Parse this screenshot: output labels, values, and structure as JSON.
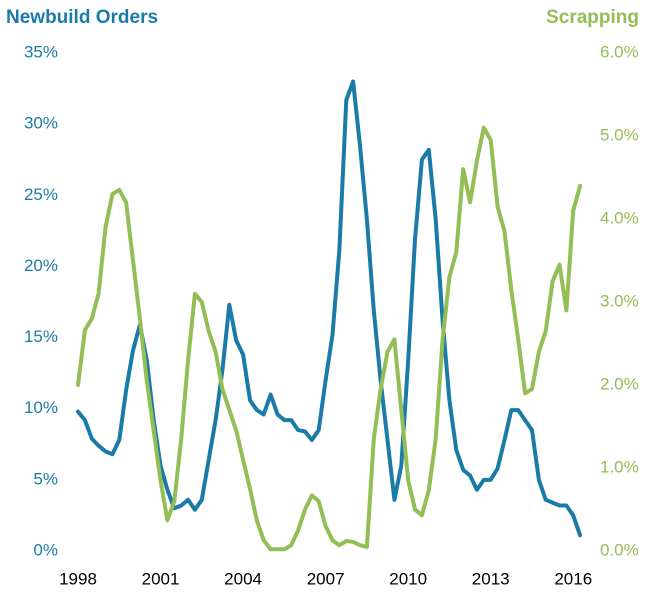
{
  "chart_data": {
    "type": "line",
    "series": [
      {
        "name": "Newbuild Orders",
        "color": "#1b7ba8",
        "axis": "y",
        "values": [
          9.8,
          9.2,
          7.9,
          7.4,
          7.0,
          6.8,
          7.8,
          11.3,
          14.1,
          15.9,
          13.4,
          9.2,
          6.0,
          4.3,
          3.0,
          3.2,
          3.6,
          2.9,
          3.6,
          6.4,
          9.2,
          12.7,
          17.3,
          14.8,
          13.8,
          10.6,
          9.9,
          9.6,
          11.0,
          9.6,
          9.2,
          9.2,
          8.5,
          8.4,
          7.8,
          8.5,
          12.0,
          15.2,
          21.2,
          31.7,
          33.0,
          28.5,
          23.3,
          16.9,
          12.0,
          7.8,
          3.6,
          6.0,
          13.4,
          21.9,
          27.5,
          28.2,
          23.3,
          16.2,
          10.6,
          7.1,
          5.7,
          5.3,
          4.3,
          5.0,
          5.0,
          5.8,
          7.8,
          9.9,
          9.9,
          9.2,
          8.5,
          5.0,
          3.6,
          3.4,
          3.2,
          3.2,
          2.5,
          1.1
        ]
      },
      {
        "name": "Scrapping",
        "color": "#93bd55",
        "axis": "y2",
        "values": [
          2.0,
          2.66,
          2.8,
          3.1,
          3.9,
          4.3,
          4.35,
          4.2,
          3.5,
          2.8,
          2.05,
          1.45,
          0.85,
          0.37,
          0.6,
          1.35,
          2.3,
          3.1,
          3.0,
          2.65,
          2.4,
          1.95,
          1.7,
          1.45,
          1.1,
          0.75,
          0.37,
          0.13,
          0.02,
          0.02,
          0.02,
          0.07,
          0.25,
          0.5,
          0.67,
          0.6,
          0.3,
          0.13,
          0.07,
          0.12,
          0.11,
          0.07,
          0.05,
          1.35,
          1.95,
          2.4,
          2.55,
          1.7,
          0.85,
          0.5,
          0.43,
          0.73,
          1.35,
          2.55,
          3.3,
          3.6,
          4.6,
          4.2,
          4.7,
          5.1,
          4.95,
          4.15,
          3.85,
          3.15,
          2.55,
          1.9,
          1.95,
          2.4,
          2.65,
          3.25,
          3.45,
          2.9,
          4.1,
          4.4
        ]
      }
    ],
    "x": [
      1998,
      1998.25,
      1998.5,
      1998.75,
      1999,
      1999.25,
      1999.5,
      1999.75,
      2000,
      2000.25,
      2000.5,
      2000.75,
      2001,
      2001.25,
      2001.5,
      2001.75,
      2002,
      2002.25,
      2002.5,
      2002.75,
      2003,
      2003.25,
      2003.5,
      2003.75,
      2004,
      2004.25,
      2004.5,
      2004.75,
      2005,
      2005.25,
      2005.5,
      2005.75,
      2006,
      2006.25,
      2006.5,
      2006.75,
      2007,
      2007.25,
      2007.5,
      2007.75,
      2008,
      2008.25,
      2008.5,
      2008.75,
      2009,
      2009.25,
      2009.5,
      2009.75,
      2010,
      2010.25,
      2010.5,
      2010.75,
      2011,
      2011.25,
      2011.5,
      2011.75,
      2012,
      2012.25,
      2012.5,
      2012.75,
      2013,
      2013.25,
      2013.5,
      2013.75,
      2014,
      2014.25,
      2014.5,
      2014.75,
      2015,
      2015.25,
      2015.5,
      2015.75,
      2016,
      2016.25
    ],
    "xlim": [
      1998,
      2016.5
    ],
    "xticks": [
      1998,
      2001,
      2004,
      2007,
      2010,
      2013,
      2016
    ],
    "ylim": [
      0,
      35
    ],
    "yticks": [
      {
        "value": 0,
        "label": "0%"
      },
      {
        "value": 5,
        "label": "5%"
      },
      {
        "value": 10,
        "label": "10%"
      },
      {
        "value": 15,
        "label": "15%"
      },
      {
        "value": 20,
        "label": "20%"
      },
      {
        "value": 25,
        "label": "25%"
      },
      {
        "value": 30,
        "label": "30%"
      },
      {
        "value": 35,
        "label": "35%"
      }
    ],
    "y2lim": [
      0,
      6
    ],
    "y2ticks": [
      {
        "value": 0,
        "label": "0.0%"
      },
      {
        "value": 1,
        "label": "1.0%"
      },
      {
        "value": 2,
        "label": "2.0%"
      },
      {
        "value": 3,
        "label": "3.0%"
      },
      {
        "value": 4,
        "label": "4.0%"
      },
      {
        "value": 5,
        "label": "5.0%"
      },
      {
        "value": 6,
        "label": "6.0%"
      }
    ],
    "grid": false
  }
}
